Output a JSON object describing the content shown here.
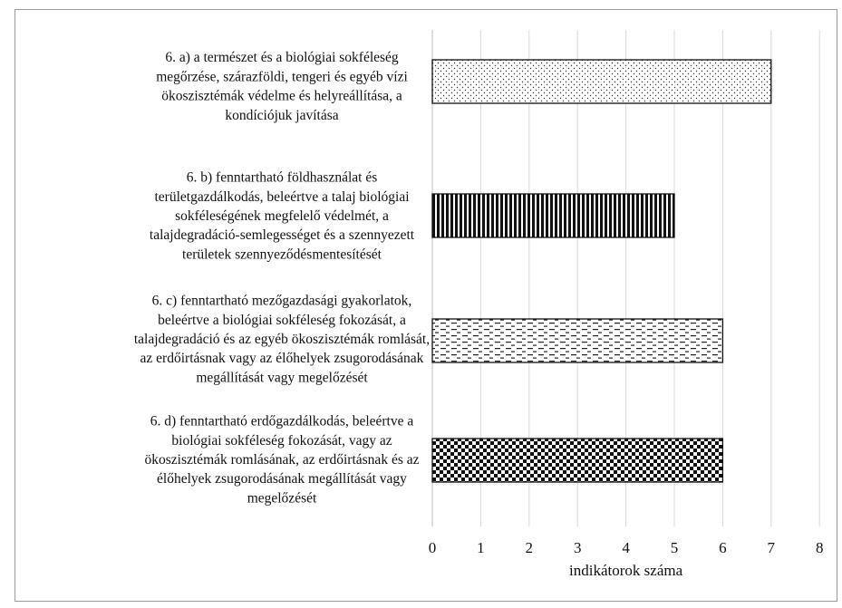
{
  "chart_data": {
    "type": "bar",
    "orientation": "horizontal",
    "categories": [
      [
        "6. a) a természet és a biológiai sokféleség",
        "megőrzése, szárazföldi, tengeri és egyéb vízi",
        "ökoszisztémák védelme és helyreállítása, a",
        "kondíciójuk javítása"
      ],
      [
        "6. b) fenntartható földhasználat és",
        "területgazdálkodás, beleértve a talaj biológiai",
        "sokféleségének megfelelő védelmét, a",
        "talajdegradáció-semlegességet és a szennyezett",
        "területek szennyeződésmentesítését"
      ],
      [
        "6. c) fenntartható mezőgazdasági gyakorlatok,",
        "beleértve a biológiai sokféleség fokozását, a",
        "talajdegradáció és az egyéb ökoszisztémák romlását,",
        "az erdőirtásnak vagy az élőhelyek zsugorodásának",
        "megállítását vagy megelőzését"
      ],
      [
        "6. d) fenntartható erdőgazdálkodás, beleértve a",
        "biológiai sokféleség fokozását, vagy az",
        "ökoszisztémák romlásának, az erdőirtásnak és az",
        "élőhelyek zsugorodásának megállítását vagy",
        "megelőzését"
      ]
    ],
    "values": [
      7,
      5,
      6,
      6
    ],
    "patterns": [
      "dots",
      "vertical-lines",
      "dashes",
      "checker"
    ],
    "xlabel": "indikátorok száma",
    "xlim": [
      0,
      8
    ],
    "xticks": [
      "0",
      "1",
      "2",
      "3",
      "4",
      "5",
      "6",
      "7",
      "8"
    ],
    "grid": true,
    "colors": {
      "ink": "#111111",
      "grid": "#d9d9d9",
      "border": "#9a9a9a"
    }
  }
}
